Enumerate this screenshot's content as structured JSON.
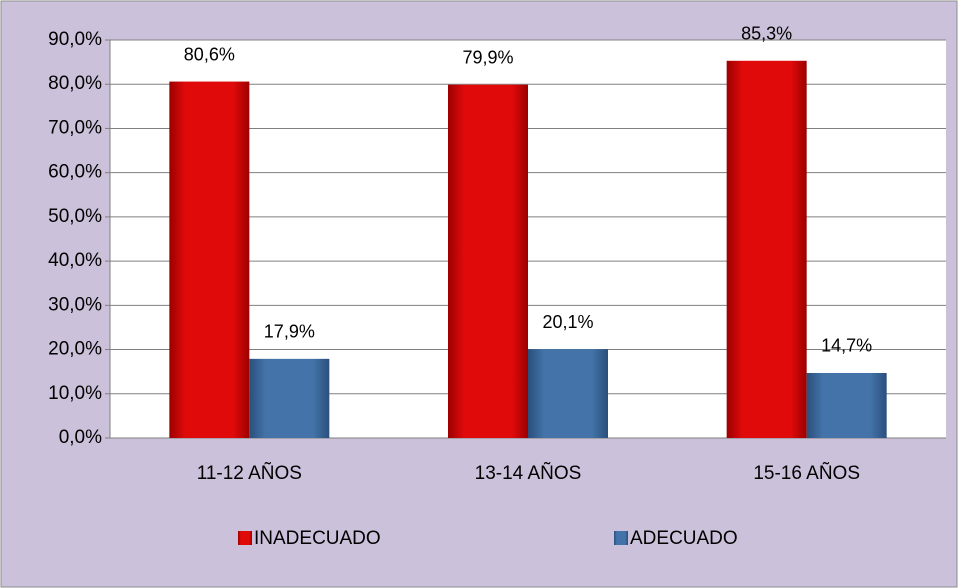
{
  "chart_data": {
    "type": "bar",
    "categories": [
      "11-12 AÑOS",
      "13-14 AÑOS",
      "15-16 AÑOS"
    ],
    "series": [
      {
        "name": "INADECUADO",
        "color": "#e00a0a",
        "values": [
          80.6,
          79.9,
          85.3
        ],
        "value_labels": [
          "80,6%",
          "79,9%",
          "85,3%"
        ]
      },
      {
        "name": "ADECUADO",
        "color": "#4373a8",
        "values": [
          17.9,
          20.1,
          14.7
        ],
        "value_labels": [
          "17,9%",
          "20,1%",
          "14,7%"
        ]
      }
    ],
    "ylim": [
      0,
      90
    ],
    "yticks": [
      {
        "value": 0,
        "label": "0,0%"
      },
      {
        "value": 10,
        "label": "10,0%"
      },
      {
        "value": 20,
        "label": "20,0%"
      },
      {
        "value": 30,
        "label": "30,0%"
      },
      {
        "value": 40,
        "label": "40,0%"
      },
      {
        "value": 50,
        "label": "50,0%"
      },
      {
        "value": 60,
        "label": "60,0%"
      },
      {
        "value": 70,
        "label": "70,0%"
      },
      {
        "value": 80,
        "label": "80,0%"
      },
      {
        "value": 90,
        "label": "90,0%"
      }
    ],
    "grid": true,
    "legend": "bottom"
  }
}
